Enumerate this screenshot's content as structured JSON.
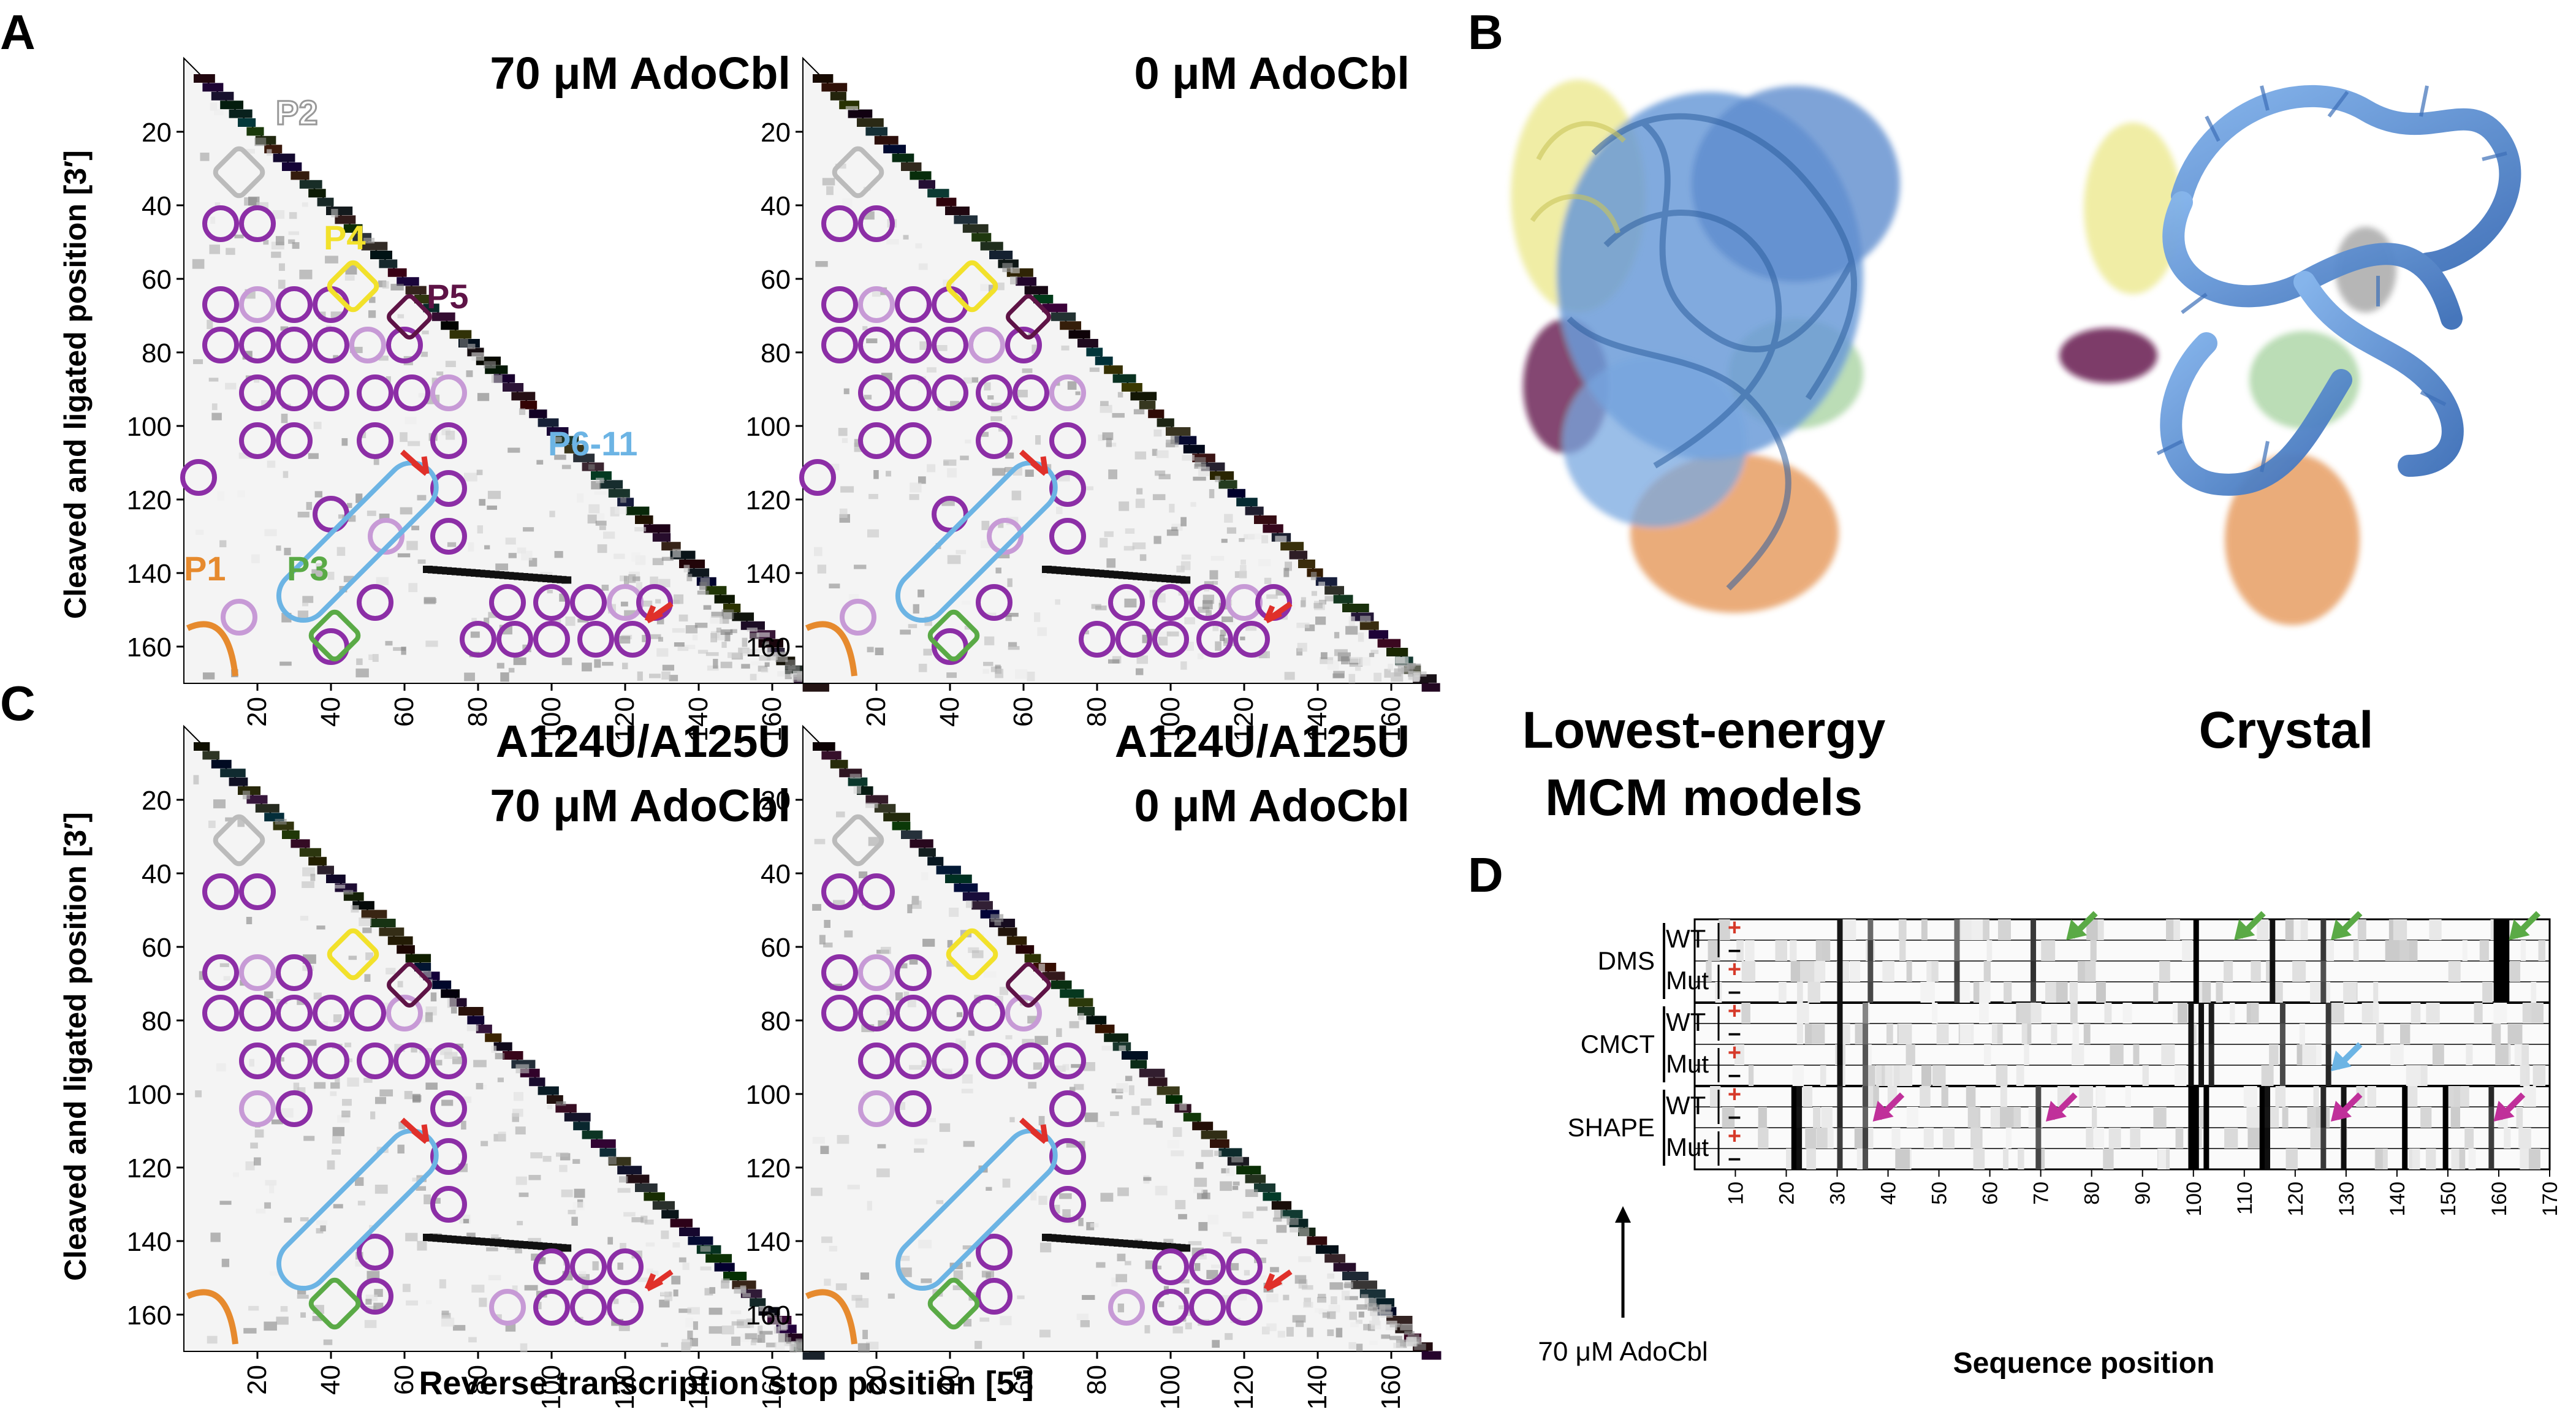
{
  "panel_labels": {
    "a": "A",
    "b": "B",
    "c": "C",
    "d": "D"
  },
  "heatmaps": [
    {
      "title_lines": [
        "70 μM AdoCbl"
      ],
      "variant": "wt"
    },
    {
      "title_lines": [
        "0 μM AdoCbl"
      ],
      "variant": "wt"
    },
    {
      "title_lines": [
        "A124U/A125U",
        "70 μM AdoCbl"
      ],
      "variant": "mut"
    },
    {
      "title_lines": [
        "A124U/A125U",
        "0 μM AdoCbl"
      ],
      "variant": "mut"
    }
  ],
  "helix_labels": {
    "p2": {
      "text": "P2",
      "color": "#cccccc"
    },
    "p4": {
      "text": "P4",
      "color": "#f2e12b"
    },
    "p5": {
      "text": "P5",
      "color": "#5e1346"
    },
    "p6_11": {
      "text": "P6-11",
      "color": "#6cb4e4"
    },
    "p1": {
      "text": "P1",
      "color": "#e68a2e"
    },
    "p3": {
      "text": "P3",
      "color": "#5aaa46"
    }
  },
  "axes": {
    "y_label": "Cleaved and ligated position [3′]",
    "x_label": "Reverse transcription stop position [5′]",
    "y_ticks": [
      "20",
      "40",
      "60",
      "80",
      "100",
      "120",
      "140",
      "160"
    ],
    "x_ticks": [
      "20",
      "40",
      "60",
      "80",
      "100",
      "120",
      "140",
      "160"
    ]
  },
  "panel_b": {
    "left_caption_lines": [
      "Lowest-energy",
      "MCM models"
    ],
    "right_caption": "Crystal",
    "colors": {
      "blue": "#5b8fd4",
      "yellow": "#e8e47a",
      "maroon": "#5e1346",
      "orange": "#e0843a",
      "green": "#93c98a",
      "gray": "#9a9a9a"
    }
  },
  "panel_d": {
    "groups": [
      "DMS",
      "CMCT",
      "SHAPE"
    ],
    "rows": [
      "WT",
      "Mut"
    ],
    "plus_sign": "+",
    "minus_sign": "–",
    "arrow_label": "70 μM AdoCbl",
    "x_label": "Sequence position",
    "x_ticks": [
      "10",
      "20",
      "30",
      "40",
      "50",
      "60",
      "70",
      "80",
      "90",
      "100",
      "110",
      "120",
      "130",
      "140",
      "150",
      "160",
      "170"
    ],
    "arrow_colors": {
      "dms": "#5aaa46",
      "cmct": "#6cb4e4",
      "shape": "#c0309a"
    }
  }
}
